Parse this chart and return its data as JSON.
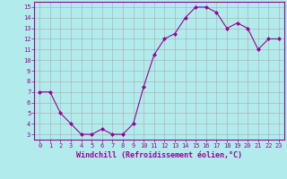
{
  "xlabel": "Windchill (Refroidissement éolien,°C)",
  "x_values": [
    0,
    1,
    2,
    3,
    4,
    5,
    6,
    7,
    8,
    9,
    10,
    11,
    12,
    13,
    14,
    15,
    16,
    17,
    18,
    19,
    20,
    21,
    22,
    23
  ],
  "y_values": [
    7,
    7,
    5,
    4,
    3,
    3,
    3.5,
    3,
    3,
    4,
    7.5,
    10.5,
    12,
    12.5,
    14,
    15,
    15,
    14.5,
    13,
    13.5,
    13,
    11,
    12,
    12
  ],
  "line_color": "#990099",
  "marker": "D",
  "marker_size": 2.0,
  "bg_color": "#b2ebeb",
  "grid_color": "#aaaaaa",
  "ylim_min": 2.5,
  "ylim_max": 15.5,
  "xlim_min": -0.5,
  "xlim_max": 23.5,
  "yticks": [
    3,
    4,
    5,
    6,
    7,
    8,
    9,
    10,
    11,
    12,
    13,
    14,
    15
  ],
  "xticks": [
    0,
    1,
    2,
    3,
    4,
    5,
    6,
    7,
    8,
    9,
    10,
    11,
    12,
    13,
    14,
    15,
    16,
    17,
    18,
    19,
    20,
    21,
    22,
    23
  ],
  "tick_label_color": "#990099",
  "axis_label_color": "#990099",
  "spine_color": "#990099",
  "font_size_tick": 5.0,
  "font_size_xlabel": 6.0,
  "line_width": 0.8
}
